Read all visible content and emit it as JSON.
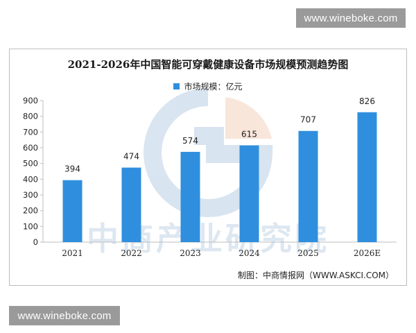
{
  "watermarks": {
    "top": "www.wineboke.com",
    "bottom": "www.wineboke.com",
    "center_logo_text": "中商产业研究院"
  },
  "source_note": "制图：中商情报网（WWW.ASKCI.COM）",
  "colors": {
    "bar": "#2f8fde",
    "axis": "#bdbdbd"
  },
  "chart_data": {
    "type": "bar",
    "title": "2021-2026年中国智能可穿戴健康设备市场规模预测趋势图",
    "legend": "市场规模：亿元",
    "legend_position": "top-center",
    "categories": [
      "2021",
      "2022",
      "2023",
      "2024",
      "2025",
      "2026E"
    ],
    "series": [
      {
        "name": "市场规模：亿元",
        "values": [
          394,
          474,
          574,
          615,
          707,
          826
        ]
      }
    ],
    "data_labels": [
      "394",
      "474",
      "574",
      "615",
      "707",
      "826"
    ],
    "ylim": [
      0,
      900
    ],
    "yticks": [
      0,
      100,
      200,
      300,
      400,
      500,
      600,
      700,
      800,
      900
    ],
    "grid": false
  }
}
